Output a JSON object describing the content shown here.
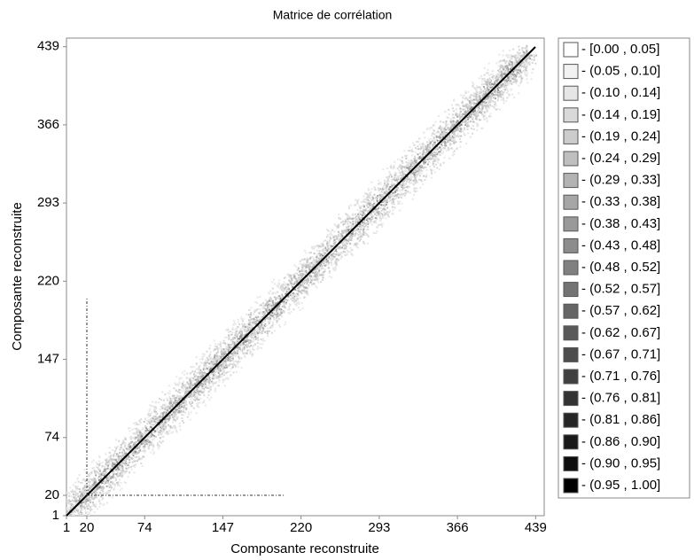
{
  "chart_data": {
    "type": "heatmap",
    "title": "Matrice de corrélation",
    "xlabel": "Composante reconstruite",
    "ylabel": "Composante reconstruite",
    "xlim": [
      1,
      447
    ],
    "ylim": [
      1,
      447
    ],
    "xticks": [
      1,
      20,
      74,
      147,
      220,
      293,
      366,
      439
    ],
    "yticks": [
      1,
      20,
      74,
      147,
      220,
      293,
      366,
      439
    ],
    "bins": [
      0.0,
      0.05,
      0.1,
      0.14,
      0.19,
      0.24,
      0.29,
      0.33,
      0.38,
      0.43,
      0.48,
      0.52,
      0.57,
      0.62,
      0.67,
      0.71,
      0.76,
      0.81,
      0.86,
      0.9,
      0.95,
      1.0
    ],
    "legend": [
      {
        "label": "- [0.00 , 0.05]",
        "color": "#ffffff"
      },
      {
        "label": "- (0.05 , 0.10]",
        "color": "#f2f2f2"
      },
      {
        "label": "- (0.10 , 0.14]",
        "color": "#e6e6e6"
      },
      {
        "label": "- (0.14 , 0.19]",
        "color": "#d9d9d9"
      },
      {
        "label": "- (0.19 , 0.24]",
        "color": "#cccccc"
      },
      {
        "label": "- (0.24 , 0.29]",
        "color": "#bfbfbf"
      },
      {
        "label": "- (0.29 , 0.33]",
        "color": "#b3b3b3"
      },
      {
        "label": "- (0.33 , 0.38]",
        "color": "#a6a6a6"
      },
      {
        "label": "- (0.38 , 0.43]",
        "color": "#999999"
      },
      {
        "label": "- (0.43 , 0.48]",
        "color": "#8c8c8c"
      },
      {
        "label": "- (0.48 , 0.52]",
        "color": "#808080"
      },
      {
        "label": "- (0.52 , 0.57]",
        "color": "#737373"
      },
      {
        "label": "- (0.57 , 0.62]",
        "color": "#666666"
      },
      {
        "label": "- (0.62 , 0.67]",
        "color": "#595959"
      },
      {
        "label": "- (0.67 , 0.71]",
        "color": "#4d4d4d"
      },
      {
        "label": "- (0.71 , 0.76]",
        "color": "#404040"
      },
      {
        "label": "- (0.76 , 0.81]",
        "color": "#333333"
      },
      {
        "label": "- (0.81 , 0.86]",
        "color": "#262626"
      },
      {
        "label": "- (0.86 , 0.90]",
        "color": "#191919"
      },
      {
        "label": "- (0.90 , 0.95]",
        "color": "#0d0d0d"
      },
      {
        "label": "- (0.95 , 1.00]",
        "color": "#000000"
      }
    ]
  }
}
